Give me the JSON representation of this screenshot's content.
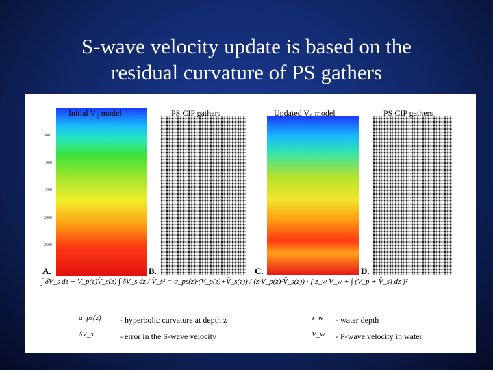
{
  "header": {
    "title_line1": "S-wave velocity update is based on the",
    "title_line2": "residual curvature of PS gathers"
  },
  "panels": [
    {
      "letter": "A.",
      "label_pre": "Initial V",
      "label_sub": "S",
      "label_post": " model",
      "ticks": [
        "500",
        "1000",
        "1500",
        "2000",
        "2500"
      ]
    },
    {
      "letter": "B.",
      "label_pre": "PS CIP gathers",
      "label_sub": "",
      "label_post": ""
    },
    {
      "letter": "C.",
      "label_pre": "Updated V",
      "label_sub": "S",
      "label_post": " model"
    },
    {
      "letter": "D.",
      "label_pre": "PS CIP gathers",
      "label_sub": "",
      "label_post": ""
    }
  ],
  "formula": "∫ δV_s dz + V_p(z)V̂_s(z) ∫ δV_s dz / V̂_s² = α_ps(z)·(V_p(z)+V̂_s(z)) / (z·V_p(z)·V̂_s(z)) · [ z_w V_w + ∫ (V_p + V̂_s) dz ]²",
  "legend": [
    {
      "symbol": "α_ps(z)",
      "text": "- hyperbolic curvature at depth z"
    },
    {
      "symbol": "δV_s",
      "text": "- error in the S-wave velocity"
    },
    {
      "symbol": "z_w",
      "text": "- water depth"
    },
    {
      "symbol": "V_w",
      "text": "-  P-wave velocity in water"
    }
  ]
}
